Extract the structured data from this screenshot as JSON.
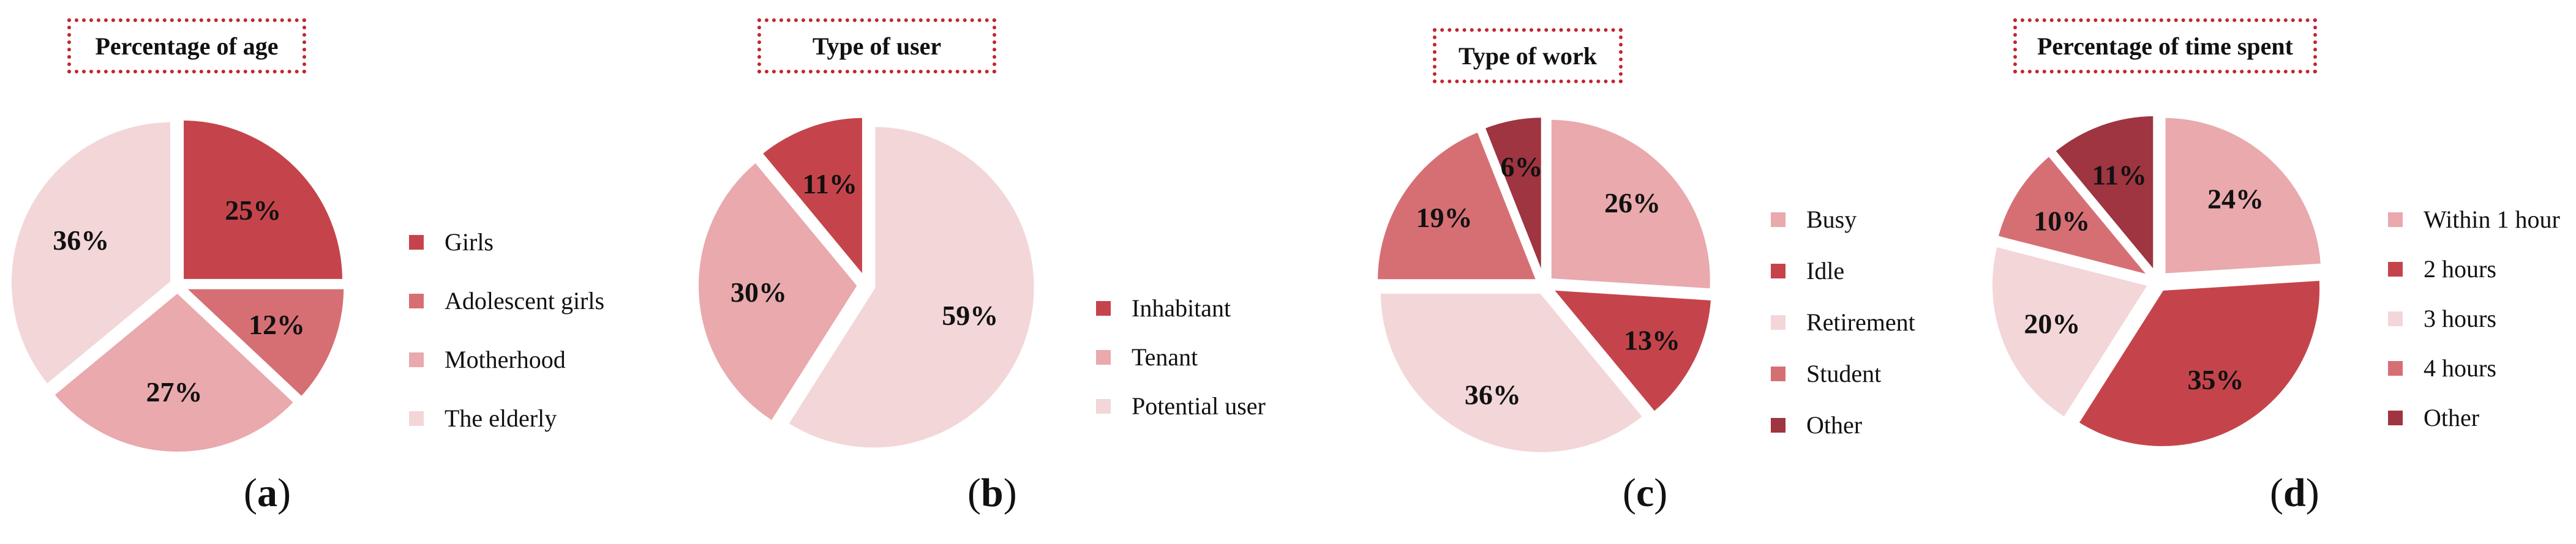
{
  "palette": {
    "dark_red": "#c5444b",
    "medium_red": "#d66f74",
    "pink": "#e9a9ad",
    "light_pink": "#f3d6d8",
    "maroon": "#9e3540",
    "title_border": "#c0262f"
  },
  "chart_data": [
    {
      "type": "pie",
      "title": "Percentage of age",
      "caption_letter": "a",
      "legend_placement": "right",
      "slices": [
        {
          "name": "Girls",
          "value": 25,
          "label": "25%",
          "color": "#c5444b"
        },
        {
          "name": "Adolescent girls",
          "value": 12,
          "label": "12%",
          "color": "#d66f74"
        },
        {
          "name": "Motherhood",
          "value": 27,
          "label": "27%",
          "color": "#e9a9ad"
        },
        {
          "name": "The elderly",
          "value": 36,
          "label": "36%",
          "color": "#f3d6d8"
        }
      ]
    },
    {
      "type": "pie",
      "title": "Type of user",
      "caption_letter": "b",
      "legend_placement": "right",
      "slices": [
        {
          "name": "Potential user",
          "value": 59,
          "label": "59%",
          "color": "#f3d6d8"
        },
        {
          "name": "Tenant",
          "value": 30,
          "label": "30%",
          "color": "#e9a9ad"
        },
        {
          "name": "Inhabitant",
          "value": 11,
          "label": "11%",
          "color": "#c5444b"
        }
      ],
      "legend_order": [
        "Inhabitant",
        "Tenant",
        "Potential user"
      ]
    },
    {
      "type": "pie",
      "title": "Type of work",
      "caption_letter": "c",
      "legend_placement": "right",
      "slices": [
        {
          "name": "Busy",
          "value": 26,
          "label": "26%",
          "color": "#e9a9ad"
        },
        {
          "name": "Idle",
          "value": 13,
          "label": "13%",
          "color": "#c5444b"
        },
        {
          "name": "Retirement",
          "value": 36,
          "label": "36%",
          "color": "#f3d6d8"
        },
        {
          "name": "Student",
          "value": 19,
          "label": "19%",
          "color": "#d66f74"
        },
        {
          "name": "Other",
          "value": 6,
          "label": "6%",
          "color": "#9e3540"
        }
      ]
    },
    {
      "type": "pie",
      "title": "Percentage of time spent",
      "caption_letter": "d",
      "legend_placement": "right",
      "slices": [
        {
          "name": "Within 1 hour",
          "value": 24,
          "label": "24%",
          "color": "#e9a9ad"
        },
        {
          "name": "2 hours",
          "value": 35,
          "label": "35%",
          "color": "#c5444b"
        },
        {
          "name": "3 hours",
          "value": 20,
          "label": "20%",
          "color": "#f3d6d8"
        },
        {
          "name": "4 hours",
          "value": 10,
          "label": "10%",
          "color": "#d66f74"
        },
        {
          "name": "Other",
          "value": 11,
          "label": "11%",
          "color": "#9e3540"
        }
      ]
    }
  ]
}
